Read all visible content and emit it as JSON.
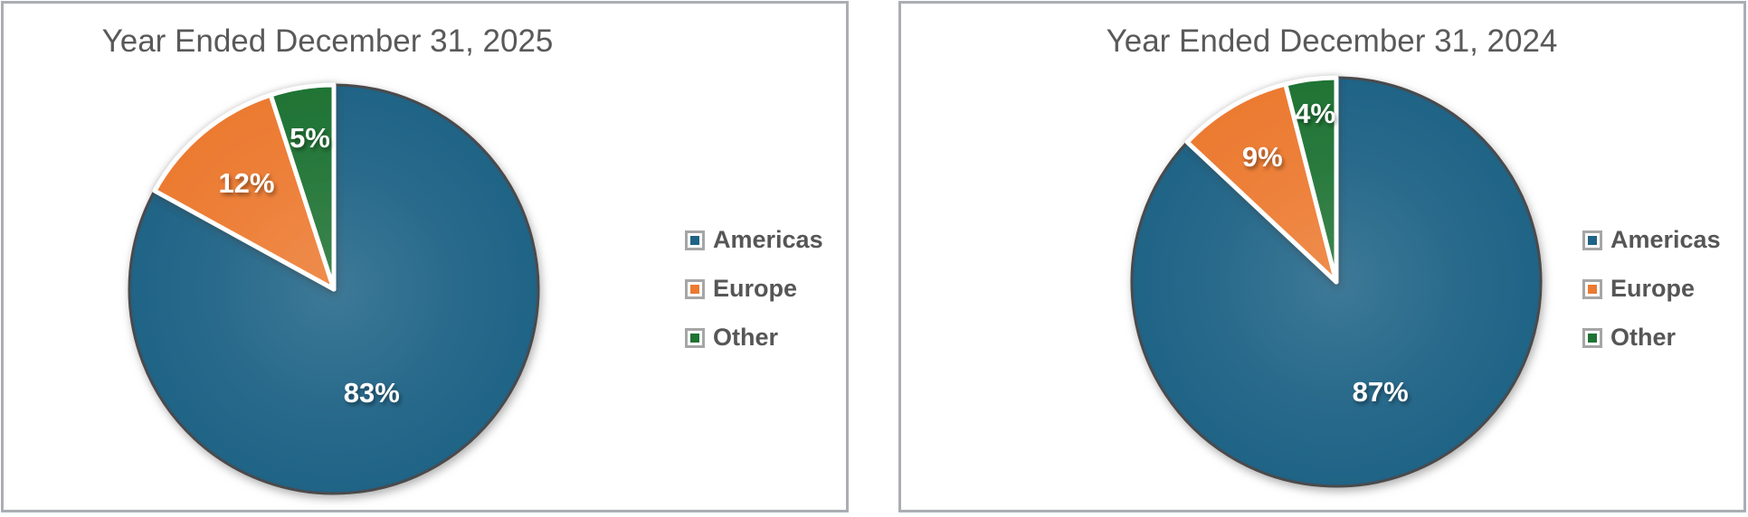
{
  "page": {
    "background": "#FFFFFF",
    "panel_border_color": "#ABADB3"
  },
  "style_colors": {
    "title_text": "#595959",
    "legend_text": "#565656",
    "slice_label_text": "#FFFFFF",
    "pie_outline_dark": "#4A4A4C",
    "slice_separator_white": "#FFFFFF",
    "legend_marker_frame": "#A6A6A6"
  },
  "chart_data": [
    {
      "type": "pie",
      "title": "Year Ended December 31, 2025",
      "categories": [
        "Americas",
        "Europe",
        "Other"
      ],
      "values": [
        83,
        12,
        5
      ],
      "labels": [
        "83%",
        "12%",
        "5%"
      ],
      "colors": [
        "#1F6386",
        "#EC7A31",
        "#1F7334"
      ],
      "legend_position": "right",
      "start_angle_deg": 0,
      "direction": "clockwise",
      "label_placement": [
        {
          "theta": 160.0,
          "frac": 0.54
        },
        {
          "theta": 320.4,
          "frac": 0.67
        },
        {
          "theta": 351.0,
          "frac": 0.75
        }
      ]
    },
    {
      "type": "pie",
      "title": "Year Ended December 31, 2024",
      "categories": [
        "Americas",
        "Europe",
        "Other"
      ],
      "values": [
        87,
        9,
        4
      ],
      "labels": [
        "87%",
        "9%",
        "4%"
      ],
      "colors": [
        "#1F6386",
        "#EC7A31",
        "#1F7334"
      ],
      "legend_position": "right",
      "start_angle_deg": 0,
      "direction": "clockwise",
      "label_placement": [
        {
          "theta": 158.2,
          "frac": 0.58
        },
        {
          "theta": 329.4,
          "frac": 0.71
        },
        {
          "theta": 352.8,
          "frac": 0.83
        }
      ]
    }
  ]
}
